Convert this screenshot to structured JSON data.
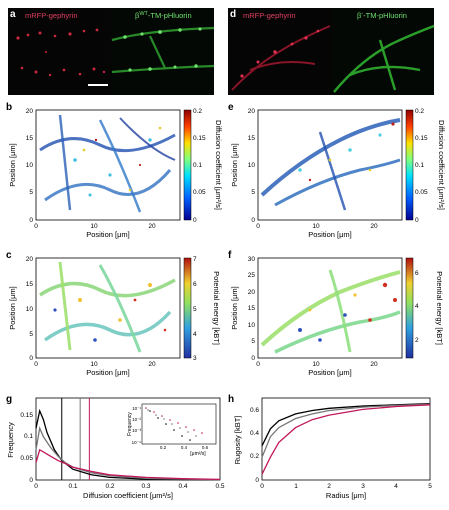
{
  "panels": {
    "a": {
      "letter": "a",
      "label_red": "mRFP-gephyrin",
      "label_green_prefix": "β",
      "label_green_sup": "WT",
      "label_green_suffix": "-TM-pHluorin"
    },
    "d": {
      "letter": "d",
      "label_red": "mRFP-gephyrin",
      "label_green_prefix": "β",
      "label_green_sup": "-",
      "label_green_suffix": "-TM-pHluorin"
    },
    "b": {
      "letter": "b",
      "xlabel": "Position [μm]",
      "ylabel": "Position [μm]",
      "colorbar_label": "Diffusion coefficient [μm²/s]",
      "xticks": [
        "0",
        "10",
        "20"
      ],
      "yticks": [
        "20",
        "15",
        "10",
        "5",
        "0"
      ],
      "cticks": [
        "0.2",
        "0.15",
        "0.1",
        "0.05",
        "0"
      ]
    },
    "e": {
      "letter": "e",
      "xlabel": "Position [μm]",
      "ylabel": "Position [μm]",
      "colorbar_label": "Diffusion coefficient [μm²/s]",
      "xticks": [
        "0",
        "10",
        "20"
      ],
      "yticks": [
        "20",
        "15",
        "10",
        "5",
        "0"
      ],
      "cticks": [
        "0.2",
        "0.15",
        "0.1",
        "0.05",
        "0"
      ]
    },
    "c": {
      "letter": "c",
      "xlabel": "Position [μm]",
      "ylabel": "Position [μm]",
      "colorbar_label": "Potential energy [kBT]",
      "xticks": [
        "0",
        "10",
        "20"
      ],
      "yticks": [
        "20",
        "15",
        "10",
        "5",
        "0"
      ],
      "cticks": [
        "7",
        "6",
        "5",
        "4",
        "3"
      ]
    },
    "f": {
      "letter": "f",
      "xlabel": "Position [μm]",
      "ylabel": "Position [μm]",
      "colorbar_label": "Potential energy [kBT]",
      "xticks": [
        "0",
        "10",
        "20"
      ],
      "yticks": [
        "30",
        "25",
        "20",
        "15",
        "10",
        "5",
        "0"
      ],
      "cticks": [
        "6",
        "4",
        "2"
      ]
    },
    "g": {
      "letter": "g",
      "xlabel": "Diffusion coefficient [μm²/s]",
      "ylabel": "Frequency",
      "xticks": [
        "0",
        "0.1",
        "0.2",
        "0.3",
        "0.4",
        "0.5"
      ],
      "yticks": [
        "0.15",
        "0.1",
        "0.05",
        "0"
      ],
      "inset_ylabel": "Frequency",
      "inset_xlabel": "[μm²/s]",
      "inset_yticks": [
        "10⁻¹",
        "10⁻²",
        "10⁻³",
        "10⁻⁴"
      ],
      "inset_xticks": [
        "0.2",
        "0.4",
        "0.6"
      ]
    },
    "h": {
      "letter": "h",
      "xlabel": "Radius [μm]",
      "ylabel": "Rugosity [kBT]",
      "xticks": [
        "0",
        "1",
        "2",
        "3",
        "4",
        "5"
      ],
      "yticks": [
        "0.6",
        "0.4",
        "0.2",
        "0"
      ]
    }
  },
  "chart_data": [
    {
      "panel": "g",
      "type": "line",
      "xlabel": "Diffusion coefficient [μm²/s]",
      "ylabel": "Frequency",
      "xlim": [
        0,
        0.5
      ],
      "ylim": [
        0,
        0.19
      ],
      "series": [
        {
          "color": "#000000",
          "x": [
            0,
            0.01,
            0.02,
            0.03,
            0.05,
            0.07,
            0.1,
            0.15,
            0.2,
            0.3,
            0.4,
            0.5
          ],
          "y": [
            0.12,
            0.16,
            0.14,
            0.11,
            0.07,
            0.045,
            0.025,
            0.012,
            0.006,
            0.002,
            0.001,
            0.0005
          ]
        },
        {
          "color": "#777777",
          "x": [
            0,
            0.01,
            0.02,
            0.04,
            0.06,
            0.08,
            0.1,
            0.15,
            0.2,
            0.3,
            0.4,
            0.5
          ],
          "y": [
            0.07,
            0.12,
            0.1,
            0.075,
            0.055,
            0.04,
            0.03,
            0.017,
            0.01,
            0.004,
            0.002,
            0.001
          ]
        },
        {
          "color": "#c2185b",
          "x": [
            0,
            0.01,
            0.02,
            0.04,
            0.06,
            0.08,
            0.1,
            0.15,
            0.2,
            0.3,
            0.4,
            0.5
          ],
          "y": [
            0.04,
            0.07,
            0.065,
            0.055,
            0.045,
            0.038,
            0.03,
            0.02,
            0.012,
            0.006,
            0.003,
            0.0015
          ]
        }
      ],
      "vlines": [
        {
          "x": 0.07,
          "color": "#000000"
        },
        {
          "x": 0.12,
          "color": "#777777"
        },
        {
          "x": 0.145,
          "color": "#c2185b"
        }
      ]
    },
    {
      "panel": "h",
      "type": "line",
      "xlabel": "Radius [μm]",
      "ylabel": "Rugosity [kBT]",
      "xlim": [
        0,
        5
      ],
      "ylim": [
        0,
        0.72
      ],
      "series": [
        {
          "color": "#000000",
          "x": [
            0,
            0.25,
            0.5,
            1,
            1.5,
            2,
            3,
            4,
            5
          ],
          "y": [
            0.3,
            0.45,
            0.52,
            0.58,
            0.61,
            0.63,
            0.65,
            0.66,
            0.67
          ]
        },
        {
          "color": "#777777",
          "x": [
            0,
            0.25,
            0.5,
            1,
            1.5,
            2,
            3,
            4,
            5
          ],
          "y": [
            0.2,
            0.38,
            0.46,
            0.54,
            0.58,
            0.61,
            0.64,
            0.655,
            0.665
          ]
        },
        {
          "color": "#c2185b",
          "x": [
            0,
            0.25,
            0.5,
            1,
            1.5,
            2,
            3,
            4,
            5
          ],
          "y": [
            0.05,
            0.2,
            0.33,
            0.46,
            0.53,
            0.57,
            0.62,
            0.645,
            0.66
          ]
        }
      ]
    }
  ]
}
